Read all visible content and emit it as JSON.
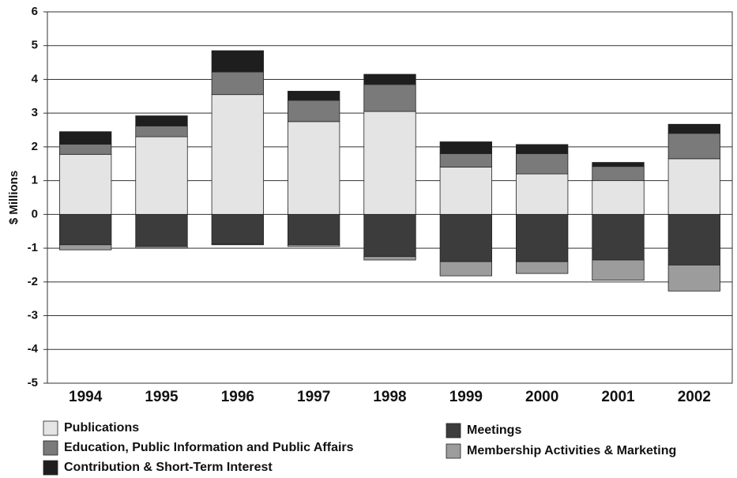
{
  "chart_data": {
    "type": "stacked_bar",
    "y_label": "$ Millions",
    "categories": [
      "1994",
      "1995",
      "1996",
      "1997",
      "1998",
      "1999",
      "2000",
      "2001",
      "2002"
    ],
    "series": [
      {
        "name": "Publications",
        "color": "#e4e4e4",
        "values": [
          1.78,
          2.3,
          3.55,
          2.75,
          3.05,
          1.4,
          1.2,
          1.0,
          1.65
        ]
      },
      {
        "name": "Education, Public Information and Public Affairs",
        "color": "#7a7a7a",
        "values": [
          0.3,
          0.32,
          0.67,
          0.63,
          0.8,
          0.4,
          0.6,
          0.42,
          0.75
        ]
      },
      {
        "name": "Contribution &  Short-Term Interest",
        "color": "#1e1e1e",
        "values": [
          0.37,
          0.3,
          0.63,
          0.27,
          0.3,
          0.35,
          0.27,
          0.12,
          0.27
        ]
      },
      {
        "name": "Meetings",
        "color": "#3c3c3c",
        "values": [
          -0.9,
          -0.95,
          -0.88,
          -0.9,
          -1.25,
          -1.4,
          -1.4,
          -1.35,
          -1.5
        ]
      },
      {
        "name": "Membership Activities & Marketing",
        "color": "#9c9c9c",
        "values": [
          -0.15,
          -0.05,
          -0.02,
          -0.05,
          -0.1,
          -0.42,
          -0.35,
          -0.6,
          -0.77
        ]
      }
    ],
    "ylim": [
      -5,
      6
    ],
    "yticks": [
      -5,
      -4,
      -3,
      -2,
      -1,
      0,
      1,
      2,
      3,
      4,
      5,
      6
    ],
    "grid": true,
    "legend_position": "bottom"
  }
}
